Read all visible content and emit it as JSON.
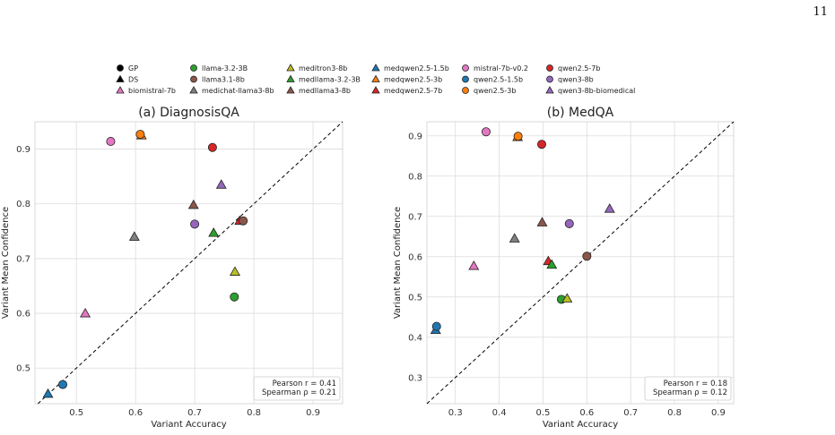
{
  "page_number": "11",
  "legend_entries": [
    {
      "name": "GP",
      "marker": "circle",
      "color": "#000000"
    },
    {
      "name": "DS",
      "marker": "triangle",
      "color": "#000000"
    },
    {
      "name": "biomistral-7b",
      "marker": "triangle",
      "color": "#e377c2"
    },
    {
      "name": "llama-3.2-3B",
      "marker": "circle",
      "color": "#2ca02c"
    },
    {
      "name": "llama3.1-8b",
      "marker": "circle",
      "color": "#8c564b"
    },
    {
      "name": "medichat-llama3-8b",
      "marker": "triangle",
      "color": "#7f7f7f"
    },
    {
      "name": "meditron3-8b",
      "marker": "triangle",
      "color": "#bcbd22"
    },
    {
      "name": "medllama-3.2-3B",
      "marker": "triangle",
      "color": "#2ca02c"
    },
    {
      "name": "medllama3-8b",
      "marker": "triangle",
      "color": "#8c564b"
    },
    {
      "name": "medqwen2.5-1.5b",
      "marker": "triangle",
      "color": "#1f77b4"
    },
    {
      "name": "medqwen2.5-3b",
      "marker": "triangle",
      "color": "#ff7f0e"
    },
    {
      "name": "medqwen2.5-7b",
      "marker": "triangle",
      "color": "#d62728"
    },
    {
      "name": "mistral-7b-v0.2",
      "marker": "circle",
      "color": "#e377c2"
    },
    {
      "name": "qwen2.5-1.5b",
      "marker": "circle",
      "color": "#1f77b4"
    },
    {
      "name": "qwen2.5-3b",
      "marker": "circle",
      "color": "#ff7f0e"
    },
    {
      "name": "qwen2.5-7b",
      "marker": "circle",
      "color": "#d62728"
    },
    {
      "name": "qwen3-8b",
      "marker": "circle",
      "color": "#9467bd"
    },
    {
      "name": "qwen3-8b-biomedical",
      "marker": "triangle",
      "color": "#9467bd"
    }
  ],
  "chart_data": [
    {
      "type": "scatter",
      "title": "(a) DiagnosisQA",
      "xlabel": "Variant Accuracy",
      "ylabel": "Variant Mean Confidence",
      "xlim": [
        0.43,
        0.95
      ],
      "ylim": [
        0.435,
        0.95
      ],
      "xticks": [
        0.5,
        0.6,
        0.7,
        0.8,
        0.9
      ],
      "yticks": [
        0.5,
        0.6,
        0.7,
        0.8,
        0.9
      ],
      "grid": true,
      "diagonal": true,
      "stats": [
        "Pearson r = 0.41",
        "Spearman ρ = 0.21"
      ],
      "points": [
        {
          "model": "medqwen2.5-1.5b",
          "x": 0.452,
          "y": 0.453
        },
        {
          "model": "qwen2.5-1.5b",
          "x": 0.477,
          "y": 0.47
        },
        {
          "model": "biomistral-7b",
          "x": 0.515,
          "y": 0.6
        },
        {
          "model": "mistral-7b-v0.2",
          "x": 0.558,
          "y": 0.914
        },
        {
          "model": "medichat-llama3-8b",
          "x": 0.598,
          "y": 0.74
        },
        {
          "model": "medqwen2.5-3b",
          "x": 0.61,
          "y": 0.925
        },
        {
          "model": "qwen2.5-3b",
          "x": 0.608,
          "y": 0.927
        },
        {
          "model": "medllama3-8b",
          "x": 0.698,
          "y": 0.798
        },
        {
          "model": "qwen3-8b",
          "x": 0.7,
          "y": 0.763
        },
        {
          "model": "qwen2.5-7b",
          "x": 0.73,
          "y": 0.903
        },
        {
          "model": "medllama-3.2-3B",
          "x": 0.732,
          "y": 0.747
        },
        {
          "model": "qwen3-8b-biomedical",
          "x": 0.745,
          "y": 0.835
        },
        {
          "model": "meditron3-8b",
          "x": 0.768,
          "y": 0.676
        },
        {
          "model": "llama-3.2-3B",
          "x": 0.767,
          "y": 0.63
        },
        {
          "model": "medqwen2.5-7b",
          "x": 0.776,
          "y": 0.769
        },
        {
          "model": "llama3.1-8b",
          "x": 0.782,
          "y": 0.769
        }
      ]
    },
    {
      "type": "scatter",
      "title": "(b) MedQA",
      "xlabel": "Variant Accuracy",
      "ylabel": "Variant Mean Confidence",
      "xlim": [
        0.235,
        0.935
      ],
      "ylim": [
        0.235,
        0.935
      ],
      "xticks": [
        0.3,
        0.4,
        0.5,
        0.6,
        0.7,
        0.8,
        0.9
      ],
      "yticks": [
        0.3,
        0.4,
        0.5,
        0.6,
        0.7,
        0.8,
        0.9
      ],
      "grid": true,
      "diagonal": true,
      "stats": [
        "Pearson r = 0.18",
        "Spearman ρ = 0.12"
      ],
      "points": [
        {
          "model": "medqwen2.5-1.5b",
          "x": 0.255,
          "y": 0.418
        },
        {
          "model": "qwen2.5-1.5b",
          "x": 0.257,
          "y": 0.427
        },
        {
          "model": "biomistral-7b",
          "x": 0.342,
          "y": 0.577
        },
        {
          "model": "mistral-7b-v0.2",
          "x": 0.37,
          "y": 0.91
        },
        {
          "model": "medichat-llama3-8b",
          "x": 0.435,
          "y": 0.645
        },
        {
          "model": "medqwen2.5-3b",
          "x": 0.442,
          "y": 0.897
        },
        {
          "model": "qwen2.5-3b",
          "x": 0.443,
          "y": 0.899
        },
        {
          "model": "qwen2.5-7b",
          "x": 0.497,
          "y": 0.879
        },
        {
          "model": "medllama3-8b",
          "x": 0.498,
          "y": 0.685
        },
        {
          "model": "medqwen2.5-7b",
          "x": 0.512,
          "y": 0.589
        },
        {
          "model": "medllama-3.2-3B",
          "x": 0.52,
          "y": 0.58
        },
        {
          "model": "llama-3.2-3B",
          "x": 0.542,
          "y": 0.494
        },
        {
          "model": "meditron3-8b",
          "x": 0.555,
          "y": 0.496
        },
        {
          "model": "qwen3-8b",
          "x": 0.56,
          "y": 0.682
        },
        {
          "model": "llama3.1-8b",
          "x": 0.6,
          "y": 0.601
        },
        {
          "model": "qwen3-8b-biomedical",
          "x": 0.652,
          "y": 0.719
        }
      ]
    }
  ]
}
